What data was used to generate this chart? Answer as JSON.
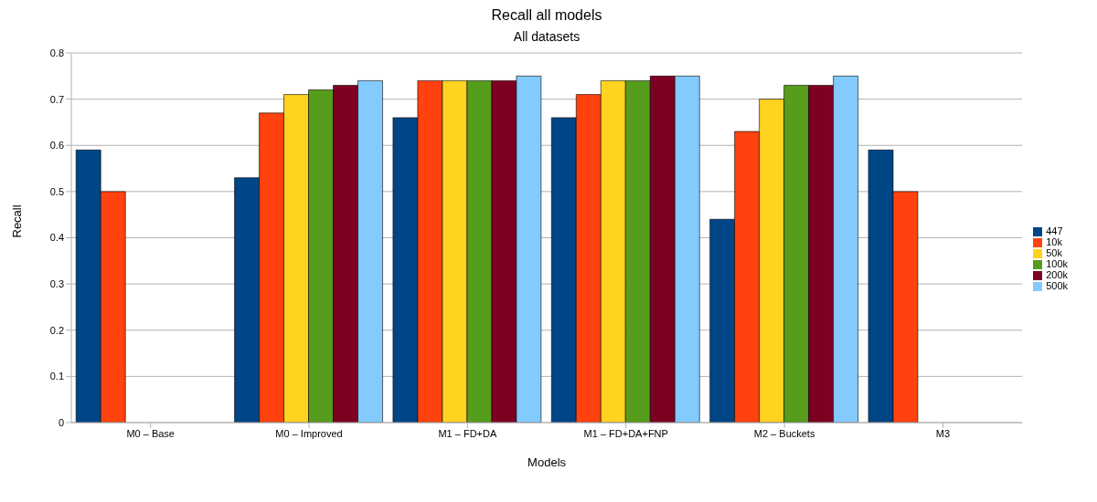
{
  "chart_data": {
    "type": "bar",
    "title": "Recall all models",
    "subtitle": "All datasets",
    "xlabel": "Models",
    "ylabel": "Recall",
    "categories": [
      "M0 – Base",
      "M0 – Improved",
      "M1 – FD+DA",
      "M1 – FD+DA+FNP",
      "M2 – Buckets",
      "M3"
    ],
    "series": [
      {
        "name": "447",
        "color": "#004586",
        "values": [
          0.59,
          0.53,
          0.66,
          0.66,
          0.44,
          0.59
        ]
      },
      {
        "name": "10k",
        "color": "#ff420e",
        "values": [
          0.5,
          0.67,
          0.74,
          0.71,
          0.63,
          0.5
        ]
      },
      {
        "name": "50k",
        "color": "#ffd320",
        "values": [
          null,
          0.71,
          0.74,
          0.74,
          0.7,
          null
        ]
      },
      {
        "name": "100k",
        "color": "#579d1c",
        "values": [
          null,
          0.72,
          0.74,
          0.74,
          0.73,
          null
        ]
      },
      {
        "name": "200k",
        "color": "#7e0021",
        "values": [
          null,
          0.73,
          0.74,
          0.75,
          0.73,
          null
        ]
      },
      {
        "name": "500k",
        "color": "#83caff",
        "values": [
          null,
          0.74,
          0.75,
          0.75,
          0.75,
          null
        ]
      }
    ],
    "ylim": [
      0,
      0.8
    ],
    "yticks": [
      0,
      0.1,
      0.2,
      0.3,
      0.4,
      0.5,
      0.6,
      0.7,
      0.8
    ],
    "grid": "y",
    "legend": "right"
  }
}
